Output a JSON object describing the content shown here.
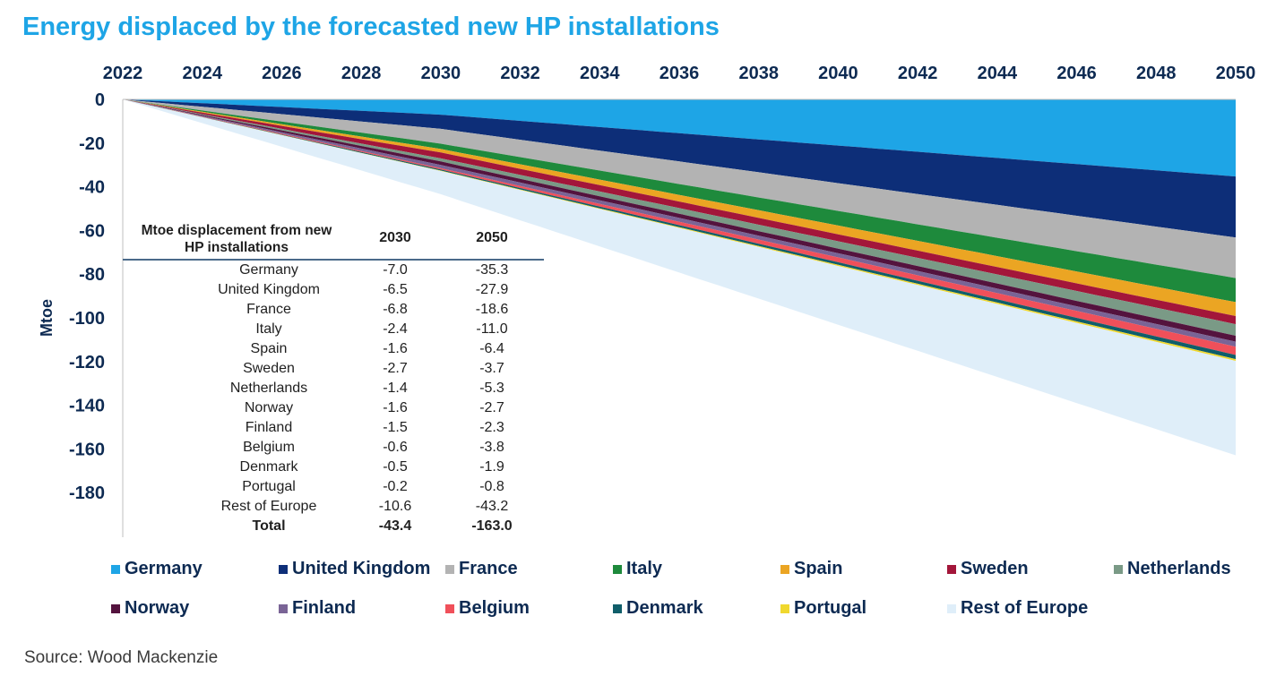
{
  "chart_data": {
    "type": "area",
    "title": "Energy displaced by the forecasted new HP installations",
    "ylabel": "Mtoe",
    "xlabel": "",
    "x_ticks": [
      "2022",
      "2024",
      "2026",
      "2028",
      "2030",
      "2032",
      "2034",
      "2036",
      "2038",
      "2040",
      "2042",
      "2044",
      "2046",
      "2048",
      "2050"
    ],
    "y_ticks": [
      "0",
      "-20",
      "-40",
      "-60",
      "-80",
      "-100",
      "-120",
      "-140",
      "-160",
      "-180"
    ],
    "xlim": [
      2022,
      2050
    ],
    "ylim": [
      -200,
      0
    ],
    "stacked": true,
    "x": [
      2022,
      2030,
      2050
    ],
    "series": [
      {
        "name": "Germany",
        "color": "#1ea5e6",
        "values": [
          0,
          -7.0,
          -35.3
        ]
      },
      {
        "name": "United Kingdom",
        "color": "#0d2e78",
        "values": [
          0,
          -6.5,
          -27.9
        ]
      },
      {
        "name": "France",
        "color": "#b3b3b3",
        "values": [
          0,
          -6.8,
          -18.6
        ]
      },
      {
        "name": "Italy",
        "color": "#1e8a3c",
        "values": [
          0,
          -2.4,
          -11.0
        ]
      },
      {
        "name": "Spain",
        "color": "#eba523",
        "values": [
          0,
          -1.6,
          -6.4
        ]
      },
      {
        "name": "Sweden",
        "color": "#a3163a",
        "values": [
          0,
          -2.7,
          -3.7
        ]
      },
      {
        "name": "Netherlands",
        "color": "#7a9a86",
        "values": [
          0,
          -1.4,
          -5.3
        ]
      },
      {
        "name": "Norway",
        "color": "#54133e",
        "values": [
          0,
          -1.6,
          -2.7
        ]
      },
      {
        "name": "Finland",
        "color": "#7a6496",
        "values": [
          0,
          -1.5,
          -2.3
        ]
      },
      {
        "name": "Belgium",
        "color": "#f0505a",
        "values": [
          0,
          -0.6,
          -3.8
        ]
      },
      {
        "name": "Denmark",
        "color": "#105e6a",
        "values": [
          0,
          -0.5,
          -1.9
        ]
      },
      {
        "name": "Portugal",
        "color": "#f0d82e",
        "values": [
          0,
          -0.2,
          -0.8
        ]
      },
      {
        "name": "Rest of Europe",
        "color": "#dfeef9",
        "values": [
          0,
          -10.6,
          -43.2
        ]
      }
    ],
    "table": {
      "header_line1": "Mtoe displacement from new",
      "header_line2": "HP installations",
      "col1": "2030",
      "col2": "2050",
      "rows": [
        {
          "label": "Germany",
          "v2030": "-7.0",
          "v2050": "-35.3"
        },
        {
          "label": "United Kingdom",
          "v2030": "-6.5",
          "v2050": "-27.9"
        },
        {
          "label": "France",
          "v2030": "-6.8",
          "v2050": "-18.6"
        },
        {
          "label": "Italy",
          "v2030": "-2.4",
          "v2050": "-11.0"
        },
        {
          "label": "Spain",
          "v2030": "-1.6",
          "v2050": "-6.4"
        },
        {
          "label": "Sweden",
          "v2030": "-2.7",
          "v2050": "-3.7"
        },
        {
          "label": "Netherlands",
          "v2030": "-1.4",
          "v2050": "-5.3"
        },
        {
          "label": "Norway",
          "v2030": "-1.6",
          "v2050": "-2.7"
        },
        {
          "label": "Finland",
          "v2030": "-1.5",
          "v2050": "-2.3"
        },
        {
          "label": "Belgium",
          "v2030": "-0.6",
          "v2050": "-3.8"
        },
        {
          "label": "Denmark",
          "v2030": "-0.5",
          "v2050": "-1.9"
        },
        {
          "label": "Portugal",
          "v2030": "-0.2",
          "v2050": "-0.8"
        },
        {
          "label": "Rest of Europe",
          "v2030": "-10.6",
          "v2050": "-43.2"
        }
      ],
      "total": {
        "label": "Total",
        "v2030": "-43.4",
        "v2050": "-163.0"
      }
    },
    "legend_position": "bottom",
    "grid": false
  },
  "source": "Source: Wood Mackenzie"
}
